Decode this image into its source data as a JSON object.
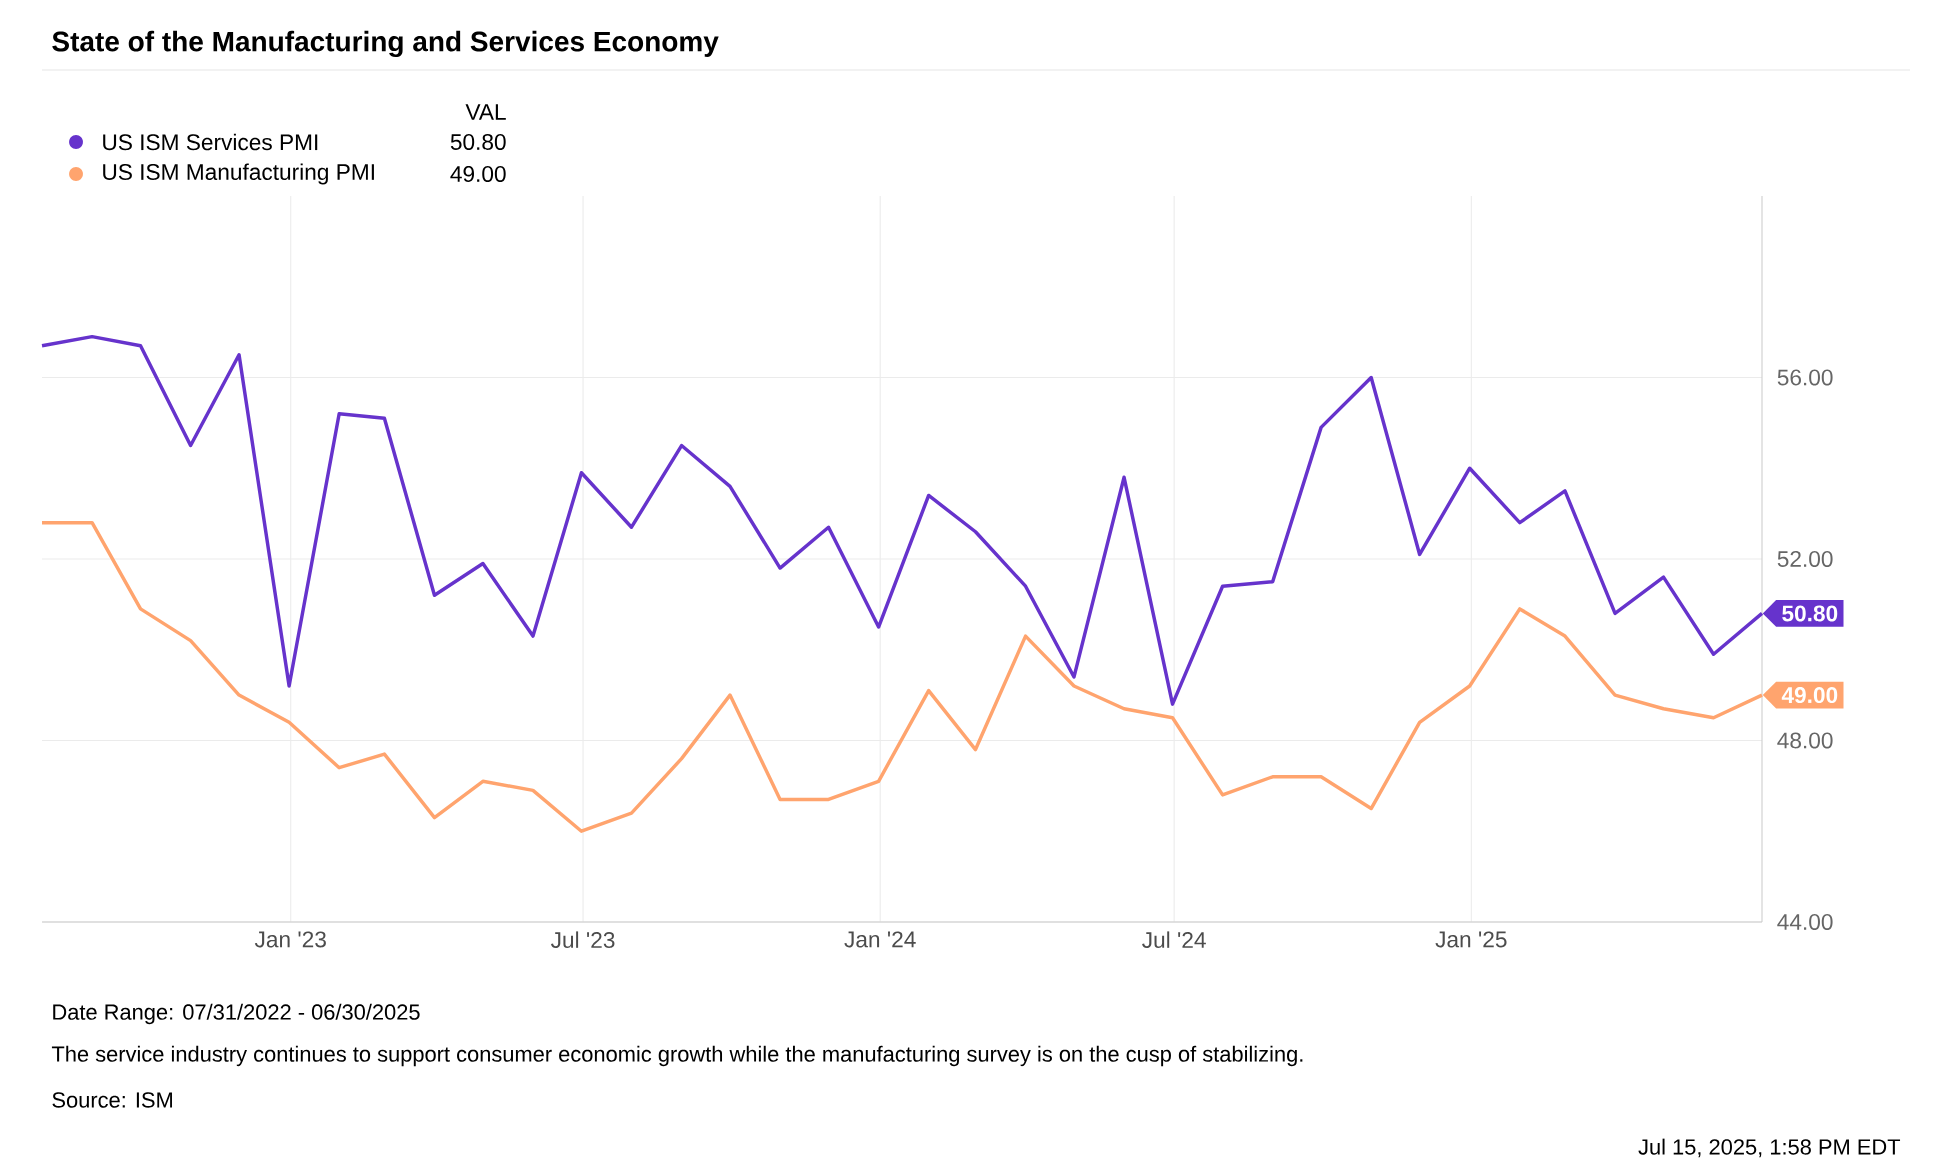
{
  "chart_data": {
    "type": "line",
    "title": "State of the Manufacturing and Services Economy",
    "x": [
      "2022-07-31",
      "2022-08-31",
      "2022-09-30",
      "2022-10-31",
      "2022-11-30",
      "2022-12-31",
      "2023-01-31",
      "2023-02-28",
      "2023-03-31",
      "2023-04-30",
      "2023-05-31",
      "2023-06-30",
      "2023-07-31",
      "2023-08-31",
      "2023-09-30",
      "2023-10-31",
      "2023-11-30",
      "2023-12-31",
      "2024-01-31",
      "2024-02-29",
      "2024-03-31",
      "2024-04-30",
      "2024-05-31",
      "2024-06-30",
      "2024-07-31",
      "2024-08-31",
      "2024-09-30",
      "2024-10-31",
      "2024-11-30",
      "2024-12-31",
      "2025-01-31",
      "2025-02-28",
      "2025-03-31",
      "2025-04-30",
      "2025-05-31",
      "2025-06-30"
    ],
    "series": [
      {
        "name": "US ISM Services PMI",
        "color": "#6633cc",
        "values": [
          56.7,
          56.9,
          56.7,
          54.5,
          56.5,
          49.2,
          55.2,
          55.1,
          51.2,
          51.9,
          50.3,
          53.9,
          52.7,
          54.5,
          53.6,
          51.8,
          52.7,
          50.5,
          53.4,
          52.6,
          51.4,
          49.4,
          53.8,
          48.8,
          51.4,
          51.5,
          54.9,
          56.0,
          52.1,
          54.0,
          52.8,
          53.5,
          50.8,
          51.6,
          49.9,
          50.8
        ],
        "value_labels": [
          null,
          null,
          null,
          null,
          null,
          null,
          null,
          null,
          null,
          null,
          null,
          null,
          null,
          null,
          null,
          null,
          null,
          null,
          null,
          null,
          null,
          null,
          null,
          null,
          null,
          null,
          null,
          null,
          null,
          null,
          null,
          null,
          null,
          null,
          null,
          "50.80"
        ]
      },
      {
        "name": "US ISM Manufacturing PMI",
        "color": "#ffa46e",
        "values": [
          52.8,
          52.8,
          50.9,
          50.2,
          49.0,
          48.4,
          47.4,
          47.7,
          46.3,
          47.1,
          46.9,
          46.0,
          46.4,
          47.6,
          49.0,
          46.7,
          46.7,
          47.1,
          49.1,
          47.8,
          50.3,
          49.2,
          48.7,
          48.5,
          46.8,
          47.2,
          47.2,
          46.5,
          48.4,
          49.2,
          50.9,
          50.3,
          49.0,
          48.7,
          48.5,
          49.0
        ],
        "value_labels": [
          null,
          null,
          null,
          null,
          null,
          null,
          null,
          null,
          null,
          null,
          null,
          null,
          null,
          null,
          null,
          null,
          null,
          null,
          null,
          null,
          null,
          null,
          null,
          null,
          null,
          null,
          null,
          null,
          null,
          null,
          null,
          null,
          null,
          null,
          null,
          "49.00"
        ]
      }
    ],
    "xlim": [
      "2022-07-31",
      "2025-06-30"
    ],
    "xticks": [
      {
        "value": "2023-01-01",
        "label": "Jan '23"
      },
      {
        "value": "2023-07-01",
        "label": "Jul '23"
      },
      {
        "value": "2024-01-01",
        "label": "Jan '24"
      },
      {
        "value": "2024-07-01",
        "label": "Jul '24"
      },
      {
        "value": "2025-01-01",
        "label": "Jan '25"
      }
    ],
    "ylim": [
      44,
      60
    ],
    "yticks": [
      {
        "value": 44,
        "label": "44.00"
      },
      {
        "value": 48,
        "label": "48.00"
      },
      {
        "value": 52,
        "label": "52.00"
      },
      {
        "value": 56,
        "label": "56.00"
      }
    ],
    "grid": true,
    "legend": "top left",
    "legend_title": "VAL",
    "marker": "none",
    "line_style": "solid",
    "annotations": [
      "Date Range: 07/31/2022 - 06/30/2025",
      "The service industry continues to support consumer economic growth while the manufacturing survey is on the cusp of stabilizing.",
      "Source: ISM",
      "Jul 15, 2025, 1:58 PM EDT"
    ]
  }
}
